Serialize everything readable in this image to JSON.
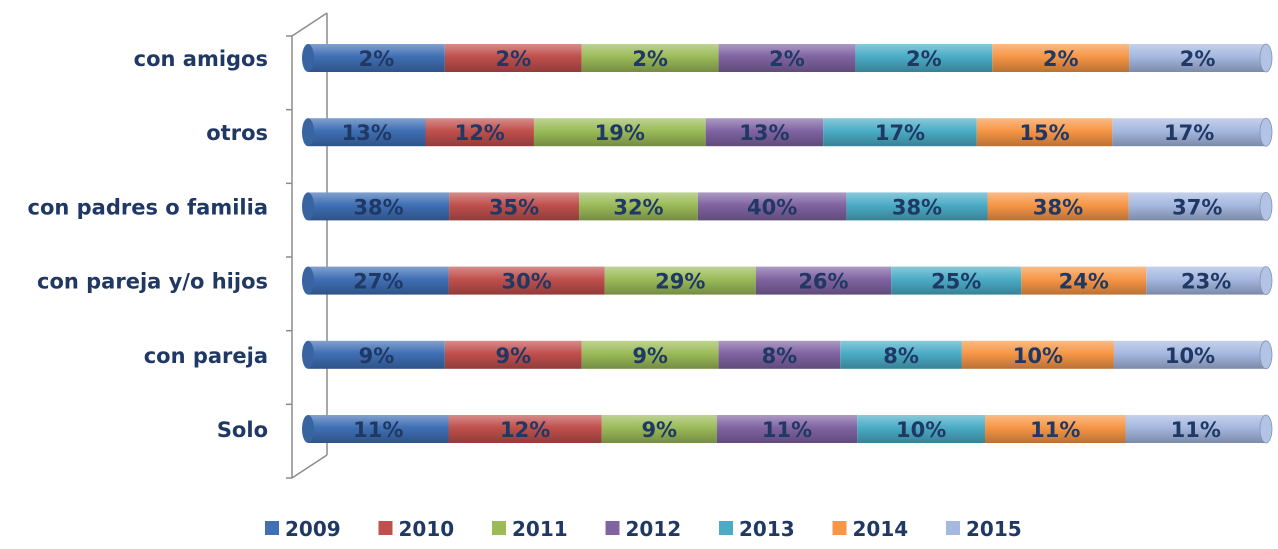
{
  "chart_data": {
    "type": "bar",
    "orientation": "horizontal",
    "stacked": "100%",
    "categories": [
      "con amigos",
      "otros",
      "con padres o familia",
      "con pareja y/o hijos",
      "con pareja",
      "Solo"
    ],
    "series": [
      {
        "name": "2009",
        "color": "#3F6FB4",
        "values": [
          2,
          13,
          38,
          27,
          9,
          11
        ]
      },
      {
        "name": "2010",
        "color": "#C0504D",
        "values": [
          2,
          12,
          35,
          30,
          9,
          12
        ]
      },
      {
        "name": "2011",
        "color": "#9BBB59",
        "values": [
          2,
          19,
          32,
          29,
          9,
          9
        ]
      },
      {
        "name": "2012",
        "color": "#8064A2",
        "values": [
          2,
          13,
          40,
          26,
          8,
          11
        ]
      },
      {
        "name": "2013",
        "color": "#4BACC6",
        "values": [
          2,
          17,
          38,
          25,
          8,
          10
        ]
      },
      {
        "name": "2014",
        "color": "#F79646",
        "values": [
          2,
          15,
          38,
          24,
          10,
          11
        ]
      },
      {
        "name": "2015",
        "color": "#A5B8E0",
        "values": [
          2,
          17,
          37,
          23,
          10,
          11
        ]
      }
    ],
    "value_suffix": "%",
    "grid": false,
    "legend_position": "bottom",
    "title": "",
    "xlabel": "",
    "ylabel": "",
    "label_color": "#1F3864"
  }
}
